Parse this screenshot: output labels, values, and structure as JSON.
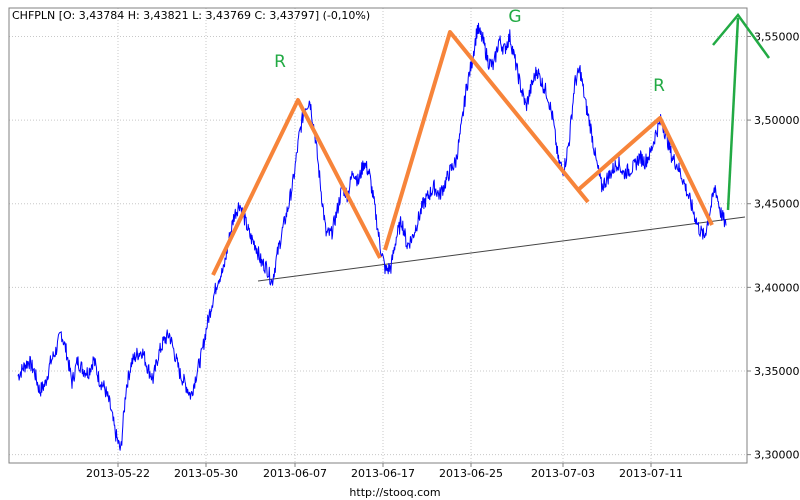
{
  "chart_data": {
    "type": "line",
    "title": "CHFPLN [O: 3,43784  H: 3,43821  L: 3,43769  C: 3,43797]  (-0,10%)",
    "source": "http://stooq.com",
    "x_ticks": [
      "2013-05-22",
      "2013-05-30",
      "2013-06-07",
      "2013-06-17",
      "2013-06-25",
      "2013-07-03",
      "2013-07-11"
    ],
    "y_ticks": [
      "3,30000",
      "3,35000",
      "3,40000",
      "3,45000",
      "3,50000",
      "3,55000"
    ],
    "ylim": [
      3.295,
      3.567
    ],
    "grid": true,
    "series": [
      {
        "color": "#0000ff",
        "points": [
          [
            0.0,
            3.347
          ],
          [
            0.6,
            3.352
          ],
          [
            1.2,
            3.356
          ],
          [
            1.8,
            3.35
          ],
          [
            2.4,
            3.338
          ],
          [
            3.0,
            3.342
          ],
          [
            3.6,
            3.355
          ],
          [
            4.2,
            3.362
          ],
          [
            4.8,
            3.373
          ],
          [
            5.4,
            3.361
          ],
          [
            6.0,
            3.343
          ],
          [
            6.6,
            3.356
          ],
          [
            7.2,
            3.351
          ],
          [
            7.8,
            3.349
          ],
          [
            8.4,
            3.357
          ],
          [
            9.0,
            3.345
          ],
          [
            9.6,
            3.34
          ],
          [
            10.2,
            3.33
          ],
          [
            10.8,
            3.313
          ],
          [
            11.4,
            3.302
          ],
          [
            12.0,
            3.34
          ],
          [
            12.6,
            3.355
          ],
          [
            13.2,
            3.36
          ],
          [
            13.8,
            3.362
          ],
          [
            14.4,
            3.352
          ],
          [
            15.0,
            3.345
          ],
          [
            15.6,
            3.36
          ],
          [
            16.2,
            3.368
          ],
          [
            16.8,
            3.372
          ],
          [
            17.4,
            3.36
          ],
          [
            18.0,
            3.348
          ],
          [
            18.6,
            3.342
          ],
          [
            19.2,
            3.335
          ],
          [
            19.8,
            3.348
          ],
          [
            20.4,
            3.36
          ],
          [
            21.0,
            3.378
          ],
          [
            21.6,
            3.392
          ],
          [
            22.2,
            3.405
          ],
          [
            22.8,
            3.41
          ],
          [
            23.4,
            3.428
          ],
          [
            24.0,
            3.443
          ],
          [
            24.6,
            3.45
          ],
          [
            25.2,
            3.44
          ],
          [
            25.8,
            3.43
          ],
          [
            26.4,
            3.425
          ],
          [
            27.0,
            3.415
          ],
          [
            27.6,
            3.412
          ],
          [
            28.2,
            3.403
          ],
          [
            28.8,
            3.42
          ],
          [
            29.4,
            3.435
          ],
          [
            30.0,
            3.448
          ],
          [
            30.6,
            3.465
          ],
          [
            31.2,
            3.49
          ],
          [
            31.8,
            3.507
          ],
          [
            32.4,
            3.512
          ],
          [
            33.0,
            3.49
          ],
          [
            33.6,
            3.46
          ],
          [
            34.2,
            3.432
          ],
          [
            34.8,
            3.432
          ],
          [
            35.4,
            3.445
          ],
          [
            36.0,
            3.46
          ],
          [
            36.6,
            3.455
          ],
          [
            37.2,
            3.47
          ],
          [
            37.8,
            3.463
          ],
          [
            38.4,
            3.475
          ],
          [
            39.0,
            3.468
          ],
          [
            39.6,
            3.448
          ],
          [
            40.2,
            3.425
          ],
          [
            40.8,
            3.41
          ],
          [
            41.4,
            3.412
          ],
          [
            42.0,
            3.43
          ],
          [
            42.6,
            3.44
          ],
          [
            43.2,
            3.425
          ],
          [
            43.8,
            3.43
          ],
          [
            44.4,
            3.44
          ],
          [
            45.0,
            3.45
          ],
          [
            45.6,
            3.455
          ],
          [
            46.2,
            3.46
          ],
          [
            46.8,
            3.455
          ],
          [
            47.4,
            3.462
          ],
          [
            48.0,
            3.47
          ],
          [
            48.6,
            3.475
          ],
          [
            49.2,
            3.495
          ],
          [
            49.8,
            3.52
          ],
          [
            50.4,
            3.535
          ],
          [
            51.0,
            3.555
          ],
          [
            51.6,
            3.548
          ],
          [
            52.2,
            3.535
          ],
          [
            52.8,
            3.532
          ],
          [
            53.4,
            3.548
          ],
          [
            54.0,
            3.542
          ],
          [
            54.6,
            3.55
          ],
          [
            55.2,
            3.535
          ],
          [
            55.8,
            3.52
          ],
          [
            56.4,
            3.508
          ],
          [
            57.0,
            3.52
          ],
          [
            57.6,
            3.53
          ],
          [
            58.2,
            3.522
          ],
          [
            58.8,
            3.515
          ],
          [
            59.4,
            3.5
          ],
          [
            60.0,
            3.475
          ],
          [
            60.6,
            3.47
          ],
          [
            61.2,
            3.488
          ],
          [
            61.8,
            3.522
          ],
          [
            62.4,
            3.53
          ],
          [
            63.0,
            3.51
          ],
          [
            63.6,
            3.495
          ],
          [
            64.2,
            3.475
          ],
          [
            64.8,
            3.46
          ],
          [
            65.4,
            3.465
          ],
          [
            66.0,
            3.47
          ],
          [
            66.6,
            3.475
          ],
          [
            67.2,
            3.468
          ],
          [
            67.8,
            3.47
          ],
          [
            68.4,
            3.472
          ],
          [
            69.0,
            3.478
          ],
          [
            69.6,
            3.475
          ],
          [
            70.2,
            3.48
          ],
          [
            70.8,
            3.492
          ],
          [
            71.4,
            3.5
          ],
          [
            72.0,
            3.49
          ],
          [
            72.6,
            3.478
          ],
          [
            73.2,
            3.473
          ],
          [
            73.8,
            3.465
          ],
          [
            74.4,
            3.455
          ],
          [
            75.0,
            3.445
          ],
          [
            75.6,
            3.435
          ],
          [
            76.2,
            3.43
          ],
          [
            76.8,
            3.445
          ],
          [
            77.4,
            3.46
          ],
          [
            78.0,
            3.445
          ],
          [
            78.6,
            3.437
          ]
        ]
      }
    ],
    "annotations": {
      "labels": [
        {
          "text": "R",
          "color": "#22aa44"
        },
        {
          "text": "G",
          "color": "#22aa44"
        },
        {
          "text": "R",
          "color": "#22aa44"
        }
      ]
    }
  }
}
